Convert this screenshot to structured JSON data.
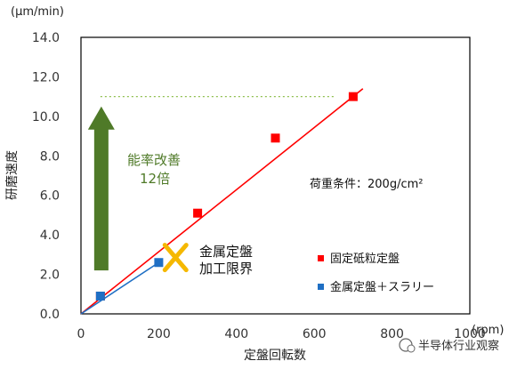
{
  "chart_data": {
    "type": "scatter",
    "y_unit": "(μm/min)",
    "x_unit": "(rpm)",
    "xlabel": "定盤回転数",
    "ylabel": "研磨速度",
    "xlim": [
      0,
      1000
    ],
    "ylim": [
      0,
      14
    ],
    "x_ticks": [
      "0",
      "200",
      "400",
      "600",
      "800",
      "1000"
    ],
    "y_ticks": [
      "0.0",
      "2.0",
      "4.0",
      "6.0",
      "8.0",
      "10.0",
      "12.0",
      "14.0"
    ],
    "grid": false,
    "legend_position": "bottom-right",
    "series": [
      {
        "name": "固定砥粒定盤",
        "color": "#ff0000",
        "marker": "square",
        "points": [
          [
            50,
            0.9
          ],
          [
            300,
            5.1
          ],
          [
            500,
            8.9
          ],
          [
            700,
            11.0
          ]
        ],
        "trendline": [
          [
            0,
            0
          ],
          [
            725,
            11.4
          ]
        ]
      },
      {
        "name": "金属定盤＋スラリー",
        "color": "#1f6fc4",
        "marker": "square",
        "points": [
          [
            50,
            0.9
          ],
          [
            200,
            2.6
          ]
        ],
        "trendline": [
          [
            0,
            0
          ],
          [
            200,
            2.6
          ]
        ]
      }
    ],
    "reference_line": {
      "y": 11.0,
      "x_from": 50,
      "x_to": 650,
      "color": "#8fbf4f",
      "style": "dotted"
    },
    "arrow": {
      "x": 50,
      "y_from": 2.2,
      "y_to": 10.5,
      "color": "#4f7a28"
    },
    "cross_marker": {
      "x": 250,
      "y": 2.9,
      "color": "#f5b800"
    },
    "annotations": {
      "improvement_line1": "能率改善",
      "improvement_line2": "12倍",
      "limit_line1": "金属定盤",
      "limit_line2": "加工限界",
      "condition": "荷重条件：200g/cm²"
    }
  },
  "watermark": "半导体行业观察"
}
